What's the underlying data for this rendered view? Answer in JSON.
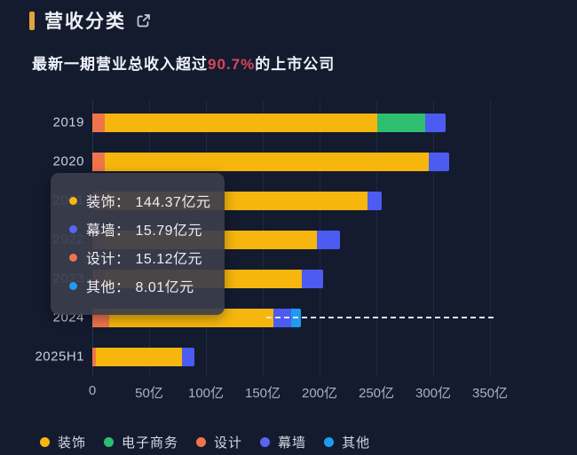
{
  "colors": {
    "background": "#141b2f",
    "accent_gold": "#e2a33c",
    "highlight_red": "#d9465a",
    "grid": "#1e2843",
    "axis_line": "#27324f",
    "dashed_line": "#e2e6ee"
  },
  "header": {
    "title": "营收分类",
    "link_icon": "external-link-icon"
  },
  "subtitle": {
    "prefix": "最新一期营业总收入超过",
    "highlight": "90.7%",
    "suffix": "的上市公司"
  },
  "chart_data": {
    "type": "bar",
    "orientation": "horizontal",
    "stacked": true,
    "unit": "亿元",
    "categories": [
      "2019",
      "2020",
      "2021",
      "2022",
      "2023",
      "2024",
      "2025H1"
    ],
    "series": [
      {
        "name": "设计",
        "color": "#f0744b",
        "values": [
          11,
          11,
          11,
          11,
          11,
          15.12,
          3
        ]
      },
      {
        "name": "装饰",
        "color": "#f6b60d",
        "values": [
          240,
          285,
          231,
          187,
          173,
          144.37,
          76
        ]
      },
      {
        "name": "电子商务",
        "color": "#2ebe6f",
        "values": [
          42,
          0,
          0,
          0,
          0,
          0,
          0
        ]
      },
      {
        "name": "幕墙",
        "color": "#4c5bf0",
        "values": [
          18,
          18,
          13,
          20,
          19,
          15.79,
          11
        ]
      },
      {
        "name": "其他",
        "color": "#1f9bf0",
        "values": [
          0,
          0,
          0,
          0,
          0,
          8.01,
          0
        ]
      }
    ],
    "totals_estimated": [
      311,
      314,
      255,
      218,
      203,
      183.29,
      90
    ],
    "x_ticks": [
      {
        "value": 0,
        "label": "0"
      },
      {
        "value": 50,
        "label": "50亿"
      },
      {
        "value": 100,
        "label": "100亿"
      },
      {
        "value": 150,
        "label": "150亿"
      },
      {
        "value": 200,
        "label": "200亿"
      },
      {
        "value": 250,
        "label": "250亿"
      },
      {
        "value": 300,
        "label": "300亿"
      },
      {
        "value": 350,
        "label": "350亿"
      }
    ],
    "xlim": [
      0,
      350
    ],
    "grid": "vertical",
    "legend_position": "bottom",
    "hovered_category": "2024",
    "axis_pointer": {
      "category": "2024",
      "from_value": 153,
      "to_value": 350,
      "style": "dashed"
    }
  },
  "tooltip": {
    "rows": [
      {
        "label": "装饰",
        "separator": "：",
        "value": "144.37亿元",
        "color": "#f6b60d"
      },
      {
        "label": "幕墙",
        "separator": "：",
        "value": "15.79亿元",
        "color": "#5865f2"
      },
      {
        "label": "设计",
        "separator": "：",
        "value": "15.12亿元",
        "color": "#f0744b"
      },
      {
        "label": "其他",
        "separator": "：",
        "value": "8.01亿元",
        "color": "#1f9bf0"
      }
    ]
  },
  "legend": {
    "items": [
      {
        "label": "装饰",
        "color": "#f6b60d"
      },
      {
        "label": "电子商务",
        "color": "#2ebe6f"
      },
      {
        "label": "设计",
        "color": "#f0744b"
      },
      {
        "label": "幕墙",
        "color": "#5865f2"
      },
      {
        "label": "其他",
        "color": "#1f9bf0"
      }
    ]
  }
}
